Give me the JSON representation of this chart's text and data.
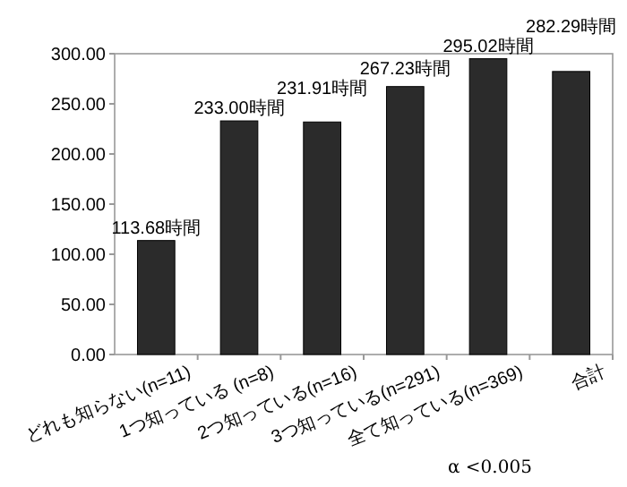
{
  "chart_data": {
    "type": "bar",
    "categories": [
      "どれも知らない(n=11)",
      "1つ知っている (n=8)",
      "2つ知っている(n=16)",
      "3つ知っている(n=291)",
      "全て知っている(n=369)",
      "合計"
    ],
    "values": [
      113.68,
      233.0,
      231.91,
      267.23,
      295.02,
      282.29
    ],
    "value_labels": [
      "113.68時間",
      "233.00時間",
      "231.91時間",
      "267.23時間",
      "295.02時間",
      "282.29時間"
    ],
    "color": "#2b2b2b",
    "ylim": [
      0,
      300
    ],
    "yticks": [
      {
        "value": 0,
        "label": "0.00"
      },
      {
        "value": 50,
        "label": "50.00"
      },
      {
        "value": 100,
        "label": "100.00"
      },
      {
        "value": 150,
        "label": "150.00"
      },
      {
        "value": 200,
        "label": "200.00"
      },
      {
        "value": 250,
        "label": "250.00"
      },
      {
        "value": 300,
        "label": "300.00"
      }
    ],
    "annotations": [
      "α <0.005"
    ]
  }
}
